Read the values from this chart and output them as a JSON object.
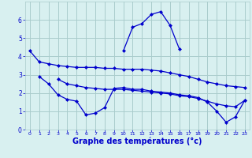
{
  "hours": [
    0,
    1,
    2,
    3,
    4,
    5,
    6,
    7,
    8,
    9,
    10,
    11,
    12,
    13,
    14,
    15,
    16,
    17,
    18,
    19,
    20,
    21,
    22,
    23
  ],
  "line1": [
    4.3,
    3.7,
    3.6,
    3.5,
    3.45,
    3.4,
    3.4,
    3.4,
    3.35,
    3.35,
    3.3,
    3.3,
    3.3,
    3.25,
    3.2,
    3.1,
    3.0,
    2.9,
    2.75,
    2.6,
    2.5,
    2.4,
    2.35,
    2.3
  ],
  "line2": [
    null,
    2.9,
    2.5,
    1.9,
    1.65,
    1.55,
    0.8,
    0.9,
    1.2,
    2.25,
    2.3,
    2.2,
    2.2,
    2.1,
    2.05,
    2.0,
    1.9,
    1.85,
    1.75,
    1.5,
    1.0,
    0.4,
    0.7,
    1.6
  ],
  "line3": [
    null,
    null,
    null,
    null,
    null,
    null,
    null,
    null,
    null,
    null,
    4.3,
    5.6,
    5.8,
    6.3,
    6.45,
    5.7,
    4.4,
    null,
    null,
    null,
    null,
    null,
    null,
    null
  ],
  "line4": [
    null,
    null,
    null,
    2.75,
    2.5,
    2.4,
    2.3,
    2.25,
    2.2,
    2.2,
    2.2,
    2.15,
    2.1,
    2.05,
    2.0,
    1.95,
    1.85,
    1.8,
    1.7,
    1.55,
    1.4,
    1.3,
    1.25,
    1.6
  ],
  "line_color": "#0000cc",
  "bg_color": "#d8f0f0",
  "grid_color": "#aacccc",
  "xlabel": "Graphe des températures (°c)",
  "xlabel_color": "#0000cc",
  "xlabel_fontsize": 7,
  "ylim": [
    0,
    7
  ],
  "xlim": [
    -0.5,
    23.5
  ],
  "yticks": [
    0,
    1,
    2,
    3,
    4,
    5,
    6
  ],
  "xticks": [
    0,
    1,
    2,
    3,
    4,
    5,
    6,
    7,
    8,
    9,
    10,
    11,
    12,
    13,
    14,
    15,
    16,
    17,
    18,
    19,
    20,
    21,
    22,
    23
  ]
}
